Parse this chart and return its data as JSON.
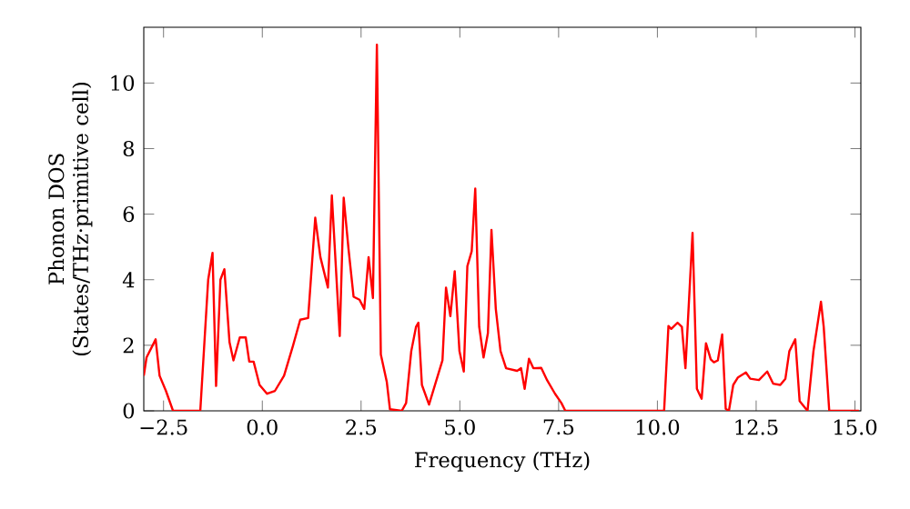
{
  "chart_data": {
    "type": "line",
    "xlabel": "Frequency (THz)",
    "ylabel": "Phonon DOS (States/THz·primitive cell)",
    "x": [
      -3.0,
      -2.93,
      -2.7,
      -2.6,
      -2.44,
      -2.26,
      -1.57,
      -1.37,
      -1.26,
      -1.17,
      -1.06,
      -0.96,
      -0.83,
      -0.73,
      -0.57,
      -0.42,
      -0.33,
      -0.22,
      -0.07,
      0.12,
      0.32,
      0.55,
      0.78,
      0.96,
      1.16,
      1.34,
      1.47,
      1.66,
      1.76,
      1.96,
      2.06,
      2.18,
      2.31,
      2.46,
      2.58,
      2.69,
      2.8,
      2.9,
      3.0,
      3.15,
      3.23,
      3.53,
      3.64,
      3.77,
      3.89,
      3.95,
      4.04,
      4.22,
      4.38,
      4.56,
      4.65,
      4.76,
      4.87,
      4.99,
      5.1,
      5.19,
      5.3,
      5.39,
      5.49,
      5.6,
      5.71,
      5.8,
      5.91,
      6.03,
      6.17,
      6.45,
      6.55,
      6.64,
      6.75,
      6.86,
      7.06,
      7.21,
      7.41,
      7.57,
      7.67,
      10.17,
      10.28,
      10.35,
      10.51,
      10.62,
      10.71,
      10.89,
      11.0,
      11.12,
      11.23,
      11.35,
      11.43,
      11.53,
      11.64,
      11.73,
      11.81,
      11.92,
      12.04,
      12.24,
      12.35,
      12.57,
      12.78,
      12.93,
      13.11,
      13.24,
      13.34,
      13.49,
      13.6,
      13.8,
      13.95,
      14.14,
      14.21,
      14.35,
      15.1
    ],
    "series": [
      {
        "color": "#ff0000",
        "values": [
          1.07,
          1.63,
          2.18,
          1.07,
          0.61,
          0,
          0,
          4.0,
          4.82,
          0.76,
          4.0,
          4.32,
          2.09,
          1.54,
          2.24,
          2.24,
          1.5,
          1.5,
          0.79,
          0.52,
          0.61,
          1.07,
          2.0,
          2.78,
          2.83,
          5.89,
          4.69,
          3.76,
          6.57,
          2.28,
          6.5,
          4.96,
          3.48,
          3.39,
          3.11,
          4.69,
          3.44,
          11.17,
          1.72,
          0.89,
          0.05,
          0,
          0.24,
          1.82,
          2.56,
          2.69,
          0.79,
          0.19,
          0.83,
          1.54,
          3.76,
          2.89,
          4.26,
          1.82,
          1.2,
          4.41,
          4.87,
          6.78,
          2.56,
          1.63,
          2.37,
          5.52,
          3.11,
          1.82,
          1.3,
          1.22,
          1.3,
          0.67,
          1.59,
          1.3,
          1.31,
          0.93,
          0.52,
          0.24,
          0,
          0,
          2.59,
          2.5,
          2.69,
          2.56,
          1.3,
          5.43,
          0.67,
          0.37,
          2.06,
          1.57,
          1.48,
          1.54,
          2.33,
          0.06,
          0,
          0.79,
          1.02,
          1.17,
          0.98,
          0.94,
          1.2,
          0.83,
          0.79,
          0.98,
          1.82,
          2.18,
          0.3,
          0,
          1.82,
          3.33,
          2.56,
          0,
          0
        ]
      }
    ],
    "xlim": [
      -3.0,
      15.15
    ],
    "ylim": [
      0,
      11.7
    ],
    "xticks": [
      {
        "value": -2.5,
        "label": "−2.5"
      },
      {
        "value": 0,
        "label": "0.0"
      },
      {
        "value": 2.5,
        "label": "2.5"
      },
      {
        "value": 5,
        "label": "5.0"
      },
      {
        "value": 7.5,
        "label": "7.5"
      },
      {
        "value": 10,
        "label": "10.0"
      },
      {
        "value": 12.5,
        "label": "12.5"
      },
      {
        "value": 15,
        "label": "15.0"
      }
    ],
    "yticks": [
      0,
      2,
      4,
      6,
      8,
      10
    ],
    "grid": false,
    "marker": "none",
    "line_style": "solid"
  }
}
